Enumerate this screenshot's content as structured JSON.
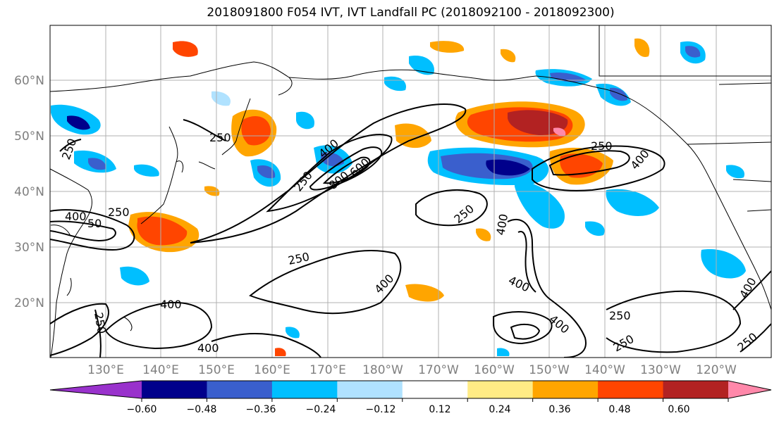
{
  "title": "2018091800 F054 IVT, IVT Landfall PC (2018092100 - 2018092300)",
  "latitude_labels": [
    "60°N",
    "50°N",
    "40°N",
    "30°N",
    "20°N"
  ],
  "longitude_labels": [
    "130°E",
    "140°E",
    "150°E",
    "160°E",
    "170°E",
    "180°W",
    "170°W",
    "160°W",
    "150°W",
    "140°W",
    "130°W",
    "120°W"
  ],
  "colorbar": {
    "tick_labels": [
      "−0.60",
      "−0.48",
      "−0.36",
      "−0.24",
      "−0.12",
      "0.12",
      "0.24",
      "0.36",
      "0.48",
      "0.60"
    ],
    "colors": [
      "#9932cc",
      "#00008b",
      "#3a5fcd",
      "#00bfff",
      "#b0e2ff",
      "#ffffff",
      "#ffeb85",
      "#ffa500",
      "#ff4500",
      "#b22222",
      "#ff88aa"
    ]
  },
  "contour_labels": [
    "250",
    "250",
    "250",
    "250",
    "250",
    "250",
    "250",
    "250",
    "250",
    "250",
    "250",
    "400",
    "400",
    "400",
    "400",
    "400",
    "400",
    "400",
    "400",
    "400",
    "400",
    "800",
    "600",
    "50"
  ]
}
